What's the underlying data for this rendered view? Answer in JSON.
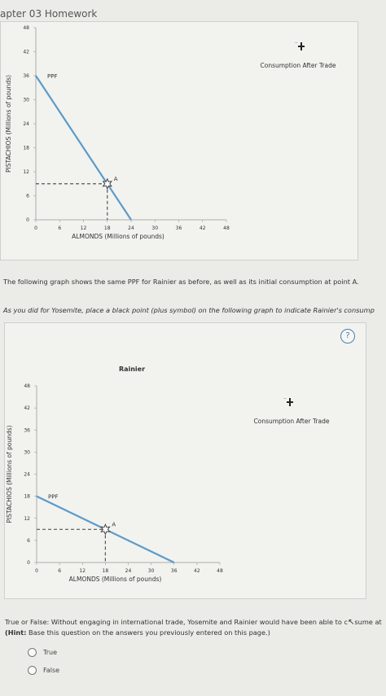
{
  "header": {
    "title": "apter 03 Homework"
  },
  "legend": {
    "label": "Consumption After Trade"
  },
  "paragraphs": {
    "intro": "The following graph shows the same PPF for Rainier as before, as well as its initial consumption at point A.",
    "instruction": "As you did for Yosemite, place a black point (plus symbol) on the following graph to indicate Rainier's consump"
  },
  "help": {
    "label": "?"
  },
  "question": {
    "text": "True or False: Without engaging in international trade, Yosemite and Rainier would have been able to c",
    "text_tail": "sume at",
    "hint_bold": "(Hint:",
    "hint_rest": " Base this question on the answers you previously entered on this page.)",
    "options": [
      "True",
      "False"
    ]
  },
  "chart_data": [
    {
      "type": "line",
      "title": "",
      "xlabel": "ALMONDS (Millions of pounds)",
      "ylabel": "PISTACHIOS (Millions of pounds)",
      "xlim": [
        0,
        48
      ],
      "ylim": [
        0,
        48
      ],
      "xticks": [
        "0",
        "6",
        "12",
        "18",
        "24",
        "30",
        "36",
        "42",
        "48"
      ],
      "yticks": [
        "0",
        "6",
        "12",
        "18",
        "24",
        "30",
        "36",
        "42",
        "48"
      ],
      "series": [
        {
          "name": "PPF",
          "x": [
            0,
            24
          ],
          "y": [
            36,
            0
          ]
        }
      ],
      "points": [
        {
          "label": "A",
          "x": 18,
          "y": 9
        }
      ],
      "legend_entries": [
        "Consumption After Trade"
      ]
    },
    {
      "type": "line",
      "title": "Rainier",
      "xlabel": "ALMONDS (Millions of pounds)",
      "ylabel": "PISTACHIOS (Millions of pounds)",
      "xlim": [
        0,
        48
      ],
      "ylim": [
        0,
        48
      ],
      "xticks": [
        "0",
        "6",
        "12",
        "18",
        "24",
        "30",
        "36",
        "42",
        "48"
      ],
      "yticks": [
        "0",
        "6",
        "12",
        "18",
        "24",
        "30",
        "36",
        "42",
        "48"
      ],
      "series": [
        {
          "name": "PPF",
          "x": [
            0,
            36
          ],
          "y": [
            18,
            0
          ]
        }
      ],
      "points": [
        {
          "label": "A",
          "x": 18,
          "y": 9
        }
      ],
      "legend_entries": [
        "Consumption After Trade"
      ]
    }
  ],
  "colors": {
    "ppf": "#5b9bc9",
    "dashed": "#555555",
    "panel": "#f2f2ef"
  }
}
